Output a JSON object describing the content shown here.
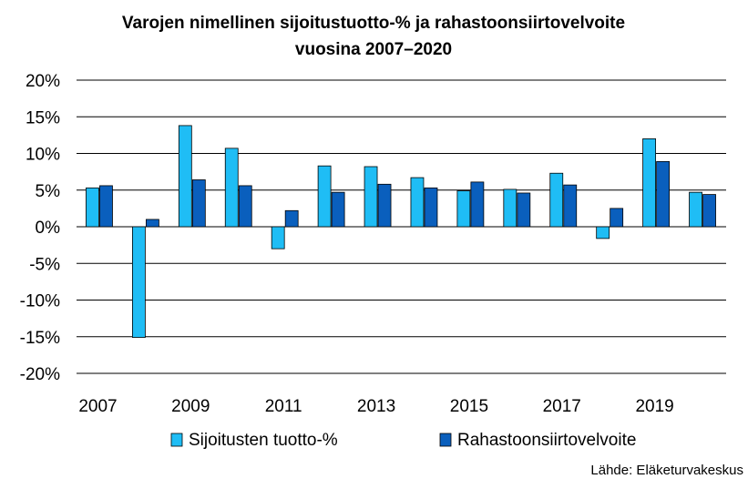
{
  "chart_data": {
    "type": "bar",
    "title_line1": "Varojen nimellinen sijoitustuotto-% ja rahastoonsiirtovelvoite",
    "title_line2": "vuosina 2007–2020",
    "source": "Lähde: Eläketurvakeskus",
    "categories": [
      "2007",
      "2008",
      "2009",
      "2010",
      "2011",
      "2012",
      "2013",
      "2014",
      "2015",
      "2016",
      "2017",
      "2018",
      "2019",
      "2020"
    ],
    "x_tick_labels": [
      "2007",
      "2009",
      "2011",
      "2013",
      "2015",
      "2017",
      "2019"
    ],
    "y_tick_labels": [
      "20%",
      "15%",
      "10%",
      "5%",
      "0%",
      "-5%",
      "-10%",
      "-15%",
      "-20%"
    ],
    "ylim": [
      -20,
      20
    ],
    "y_step": 5,
    "grid": true,
    "legend_position": "bottom",
    "series": [
      {
        "name": "Sijoitusten tuotto-%",
        "color": "#1fbdf5",
        "values": [
          5.3,
          -15.1,
          13.8,
          10.7,
          -3.0,
          8.3,
          8.2,
          6.7,
          4.9,
          5.1,
          7.3,
          -1.6,
          12.0,
          4.7
        ]
      },
      {
        "name": "Rahastoonsiirtovelvoite",
        "color": "#0a5fbd",
        "values": [
          5.6,
          1.0,
          6.4,
          5.6,
          2.2,
          4.7,
          5.8,
          5.3,
          6.1,
          4.6,
          5.7,
          2.5,
          8.9,
          4.4
        ]
      }
    ]
  }
}
